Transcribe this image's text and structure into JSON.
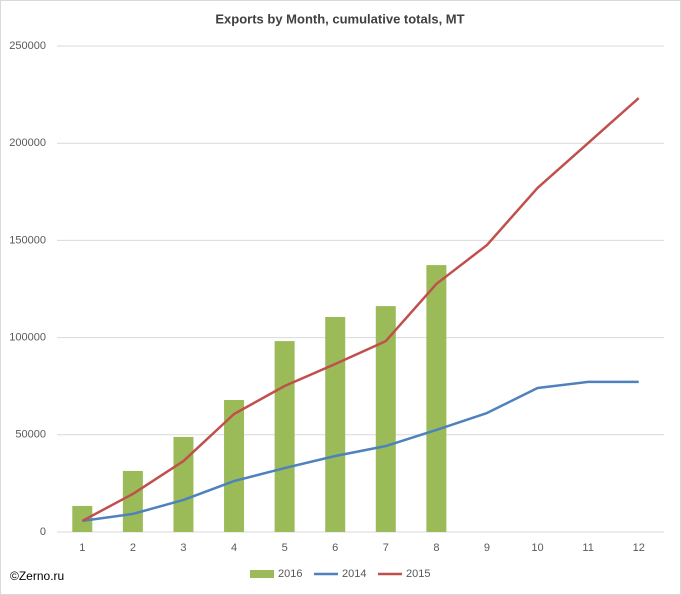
{
  "chart_data": {
    "type": "bar",
    "title": "Exports by Month, cumulative totals, MT",
    "credit": "©Zerno.ru",
    "categories": [
      "1",
      "2",
      "3",
      "4",
      "5",
      "6",
      "7",
      "8",
      "9",
      "10",
      "11",
      "12"
    ],
    "series": [
      {
        "name": "2016",
        "type": "bar",
        "color": "#9bbb59",
        "values": [
          13400,
          31400,
          48900,
          67900,
          98200,
          110600,
          116200,
          137300,
          null,
          null,
          null,
          null
        ]
      },
      {
        "name": "2014",
        "type": "line",
        "color": "#4f81bd",
        "values": [
          5700,
          9300,
          16500,
          26200,
          32900,
          39100,
          44200,
          52500,
          61200,
          74100,
          77200,
          77200
        ]
      },
      {
        "name": "2015",
        "type": "line",
        "color": "#c0504d",
        "values": [
          5700,
          19600,
          36500,
          60700,
          75100,
          86400,
          98200,
          127600,
          147600,
          177000,
          200100,
          223200
        ]
      }
    ],
    "ylim": [
      0,
      250000
    ],
    "yticks": [
      0,
      50000,
      100000,
      150000,
      200000,
      250000
    ],
    "grid": true,
    "legend": "bottom"
  }
}
